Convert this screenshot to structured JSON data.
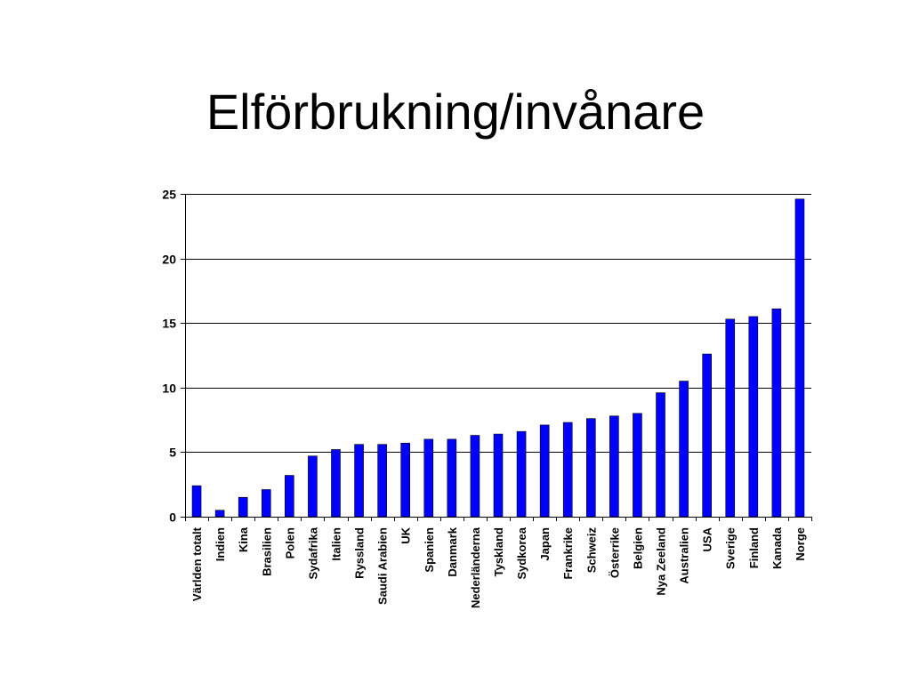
{
  "slide": {
    "title": "Elförbrukning/invånare"
  },
  "colors": {
    "bar": "#0000ff",
    "bar_outline": "#000000",
    "gridline": "#000000",
    "background": "#ffffff"
  },
  "chart_data": {
    "type": "bar",
    "title": "",
    "xlabel": "",
    "ylabel": "",
    "ylim": [
      0,
      25
    ],
    "yticks": [
      0,
      5,
      10,
      15,
      20,
      25
    ],
    "grid": true,
    "legend": "none",
    "categories": [
      "Världen totalt",
      "Indien",
      "Kina",
      "Brasilien",
      "Polen",
      "Sydafrika",
      "Italien",
      "Ryssland",
      "Saudi Arabien",
      "UK",
      "Spanien",
      "Danmark",
      "Nederländerna",
      "Tyskland",
      "Sydkorea",
      "Japan",
      "Frankrike",
      "Schweiz",
      "Österrike",
      "Belgien",
      "Nya Zeeland",
      "Australien",
      "USA",
      "Sverige",
      "Finland",
      "Kanada",
      "Norge"
    ],
    "values": [
      2.4,
      0.5,
      1.5,
      2.1,
      3.2,
      4.7,
      5.2,
      5.6,
      5.6,
      5.7,
      6.0,
      6.0,
      6.3,
      6.4,
      6.6,
      7.1,
      7.3,
      7.6,
      7.8,
      8.0,
      9.6,
      10.5,
      12.6,
      15.3,
      15.5,
      16.1,
      24.6
    ]
  }
}
